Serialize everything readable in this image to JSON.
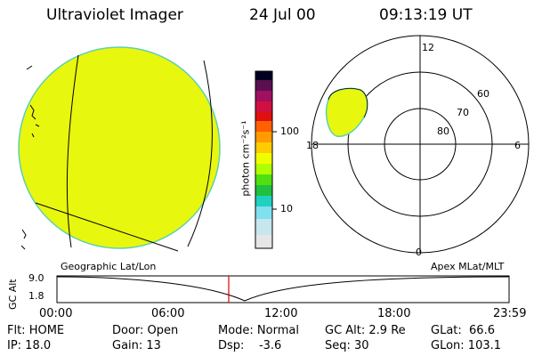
{
  "header": {
    "instrument": "Ultraviolet Imager",
    "date": "24 Jul 00",
    "time": "09:13:19 UT"
  },
  "colorbar": {
    "unit_label": "photon cm⁻²s⁻¹",
    "ticks": [
      "100",
      "10"
    ],
    "colors": [
      "#000020",
      "#5a1050",
      "#a01060",
      "#d01040",
      "#e01010",
      "#ff6000",
      "#ff9a00",
      "#ffcc00",
      "#f0ff00",
      "#b0ff00",
      "#50e010",
      "#20c040",
      "#20d0c0",
      "#80e0f0",
      "#e6e6e6"
    ]
  },
  "polar_plot": {
    "mlt_labels": {
      "top": "12",
      "left": "18",
      "right": "6",
      "bottom": "0"
    },
    "lat_labels": [
      "60",
      "70",
      "80"
    ]
  },
  "mid_labels": {
    "left": "Geographic Lat/Lon",
    "right": "Apex MLat/MLT"
  },
  "timeline": {
    "ylabel": "GC Alt",
    "y_ticks": [
      "9.0",
      "1.8"
    ],
    "x_ticks": [
      "00:00",
      "06:00",
      "12:00",
      "18:00",
      "23:59"
    ]
  },
  "status": {
    "flt": "Flt: HOME",
    "ip": "IP: 18.0",
    "door": "Door: Open",
    "gain": "Gain: 13",
    "mode": "Mode: Normal",
    "dsp": "Dsp:    -3.6",
    "gcalt": "GC Alt: 2.9 Re",
    "seq": "Seq: 30",
    "glat": "GLat:  66.6",
    "glon": "GLon: 103.1"
  },
  "colors": {
    "image_fill": "#e8f70e",
    "image_edge": "#5fd0b0",
    "marker": "#e00000"
  }
}
